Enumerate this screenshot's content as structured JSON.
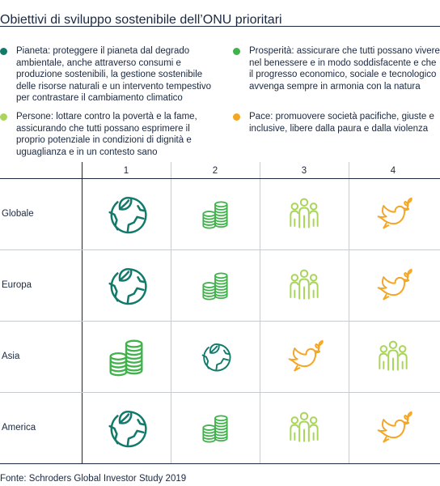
{
  "title": "Obiettivi di sviluppo sostenibile dell’ONU prioritari",
  "legend": [
    {
      "label": "Pianeta: proteggere il pianeta dal degrado ambientale, anche attraverso consumi e produzione sostenibili, la gestione sostenibile delle risorse naturali e un intervento tempestivo per contrastare il cambiamento climatico",
      "color": "#127a6b",
      "icon": "globe-leaf-icon"
    },
    {
      "label": "Persone: lottare contro la povertà e la fame, assicurando che tutti possano esprimere il proprio potenziale in condizioni di dignità e uguaglianza e in un contesto sano",
      "color": "#a9d65a",
      "icon": "people-icon"
    },
    {
      "label": "Prosperità: assicurare che tutti possano vivere nel benessere e in modo soddisfacente e che il progresso economico, sociale e tecnologico avvenga sempre in armonia con la natura",
      "color": "#3fb24a",
      "icon": "coins-icon"
    },
    {
      "label": "Pace: promuovere società pacifiche, giuste e inclusive, libere dalla paura e dalla violenza",
      "color": "#f5a623",
      "icon": "dove-icon"
    }
  ],
  "columns": [
    "1",
    "2",
    "3",
    "4"
  ],
  "rows": [
    {
      "label": "Globale",
      "cells": [
        "globe-leaf-icon",
        "coins-icon",
        "people-icon",
        "dove-icon"
      ]
    },
    {
      "label": "Europa",
      "cells": [
        "globe-leaf-icon",
        "coins-icon",
        "people-icon",
        "dove-icon"
      ]
    },
    {
      "label": "Asia",
      "cells": [
        "coins-icon",
        "globe-leaf-icon",
        "dove-icon",
        "people-icon"
      ]
    },
    {
      "label": "America",
      "cells": [
        "globe-leaf-icon",
        "coins-icon",
        "people-icon",
        "dove-icon"
      ]
    }
  ],
  "source": "Fonte: Schroders Global Investor Study 2019"
}
